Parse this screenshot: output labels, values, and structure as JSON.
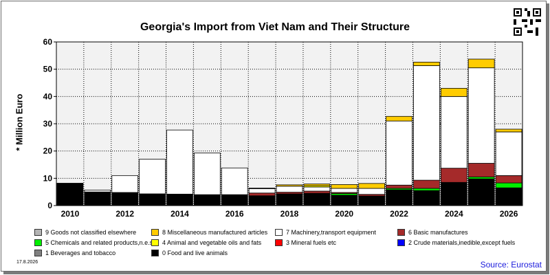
{
  "chart_data": {
    "type": "bar",
    "stacked": true,
    "title": "Georgia's Import from Viet Nam and Their Structure",
    "ylabel": "* Million Euro",
    "ylim": [
      0,
      60
    ],
    "yticks": [
      0,
      10,
      20,
      30,
      40,
      50,
      60
    ],
    "grid": true,
    "categories": [
      "2010",
      "2011",
      "2012",
      "2013",
      "2014",
      "2015",
      "2016",
      "2017",
      "2018",
      "2019",
      "2020",
      "2021",
      "2022",
      "2023",
      "2024",
      "2025",
      "2026"
    ],
    "xtick_labels": [
      "2010",
      "",
      "2012",
      "",
      "2014",
      "",
      "2016",
      "",
      "2018",
      "",
      "2020",
      "",
      "2022",
      "",
      "2024",
      "",
      "2026"
    ],
    "series": [
      {
        "name": "0 Food and live animals",
        "color": "#000000",
        "values": [
          8.2,
          5.0,
          4.8,
          4.3,
          4.2,
          4.0,
          4.0,
          3.6,
          4.3,
          4.5,
          3.8,
          3.5,
          5.8,
          5.5,
          8.5,
          9.8,
          6.5
        ]
      },
      {
        "name": "5 Chemicals and related products,n.e.s.",
        "color": "#00ee00",
        "values": [
          0,
          0,
          0,
          0,
          0,
          0,
          0,
          0,
          0,
          0,
          0.6,
          0,
          0.5,
          0.8,
          0,
          0.7,
          1.8
        ]
      },
      {
        "name": "6 Basic manufactures",
        "color": "#a52a2a",
        "values": [
          0,
          0,
          0,
          0,
          0,
          0,
          0,
          1.0,
          0.6,
          0.8,
          0.4,
          0.6,
          1.2,
          3.0,
          5.2,
          5.0,
          2.7
        ]
      },
      {
        "name": "7 Machinery,transport equipment",
        "color": "#ffffff",
        "values": [
          0,
          0.7,
          6.2,
          12.7,
          23.5,
          15.3,
          9.8,
          1.6,
          2.2,
          1.5,
          1.5,
          2.2,
          23.5,
          42.0,
          26.3,
          35.0,
          16.0
        ]
      },
      {
        "name": "4 Animal and vegetable oils and fats",
        "color": "#ffff00",
        "values": [
          0,
          0,
          0,
          0,
          0,
          0,
          0,
          0,
          0,
          0.5,
          0,
          0,
          0,
          0,
          0,
          0,
          0
        ]
      },
      {
        "name": "8 Miscellaneous manufactured articles",
        "color": "#ffcc00",
        "values": [
          0,
          0,
          0,
          0,
          0,
          0,
          0,
          0.2,
          0.5,
          0.6,
          1.4,
          1.8,
          1.7,
          1.3,
          3.0,
          3.2,
          1.0
        ]
      }
    ],
    "legend": [
      {
        "name": "9 Goods not classified elsewhere",
        "color": "#b4b4b4"
      },
      {
        "name": "8 Miscellaneous manufactured articles",
        "color": "#ffcc00"
      },
      {
        "name": "7 Machinery,transport equipment",
        "color": "#ffffff"
      },
      {
        "name": "6 Basic manufactures",
        "color": "#a52a2a"
      },
      {
        "name": "5 Chemicals and related products,n.e.s.",
        "color": "#00ee00"
      },
      {
        "name": "4 Animal and vegetable oils and fats",
        "color": "#ffff00"
      },
      {
        "name": "3 Mineral fuels etc",
        "color": "#ff0000"
      },
      {
        "name": "2 Crude materials,inedible,except fuels",
        "color": "#0000ff"
      },
      {
        "name": "1 Beverages and tobacco",
        "color": "#808080"
      },
      {
        "name": "0 Food and live animals",
        "color": "#000000"
      }
    ],
    "legend_placement": "bottom"
  },
  "footer": {
    "date": "17.8.2026",
    "source": "Source: Eurostat"
  },
  "qr_icon": "qr-code-icon"
}
